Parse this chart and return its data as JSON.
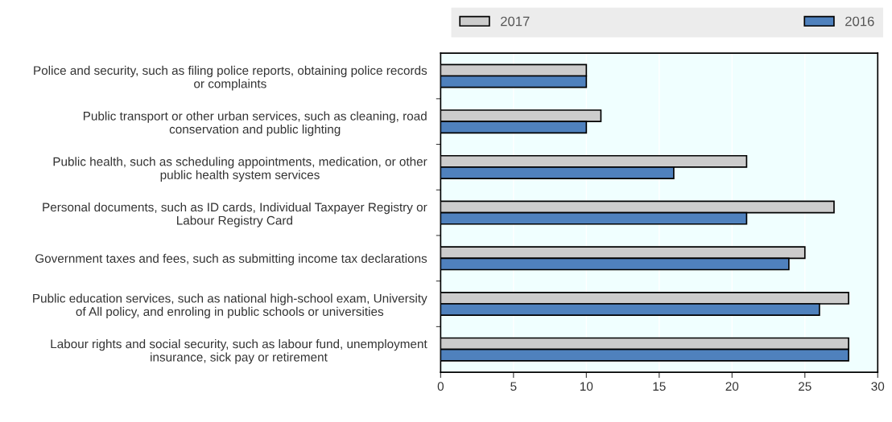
{
  "chart_data": {
    "type": "bar",
    "orientation": "horizontal",
    "categories": [
      "Police and security, such as filing police reports, obtaining police records\nor complaints",
      "Public transport or other urban services, such as cleaning, road\nconservation and public lighting",
      "Public health, such as scheduling appointments, medication, or other\npublic health system services",
      "Personal documents, such as ID cards, Individual Taxpayer Registry or\nLabour Registry Card",
      "Government taxes and fees, such as submitting income tax declarations",
      "Public education services, such as national high-school exam, University\nof All policy, and enroling in public schools or universities",
      "Labour rights and social security, such as labour fund, unemployment\ninsurance, sick pay or retirement"
    ],
    "series": [
      {
        "name": "2017",
        "color": "#cccccc",
        "values": [
          10,
          11,
          21,
          27,
          25,
          28,
          28
        ]
      },
      {
        "name": "2016",
        "color": "#4f81bd",
        "values": [
          10,
          10,
          16,
          21,
          23.9,
          26,
          28
        ]
      }
    ],
    "xlim": [
      0,
      30
    ],
    "xticks": [
      0,
      5,
      10,
      15,
      20,
      25,
      30
    ],
    "grid": "x",
    "legend": "top"
  }
}
